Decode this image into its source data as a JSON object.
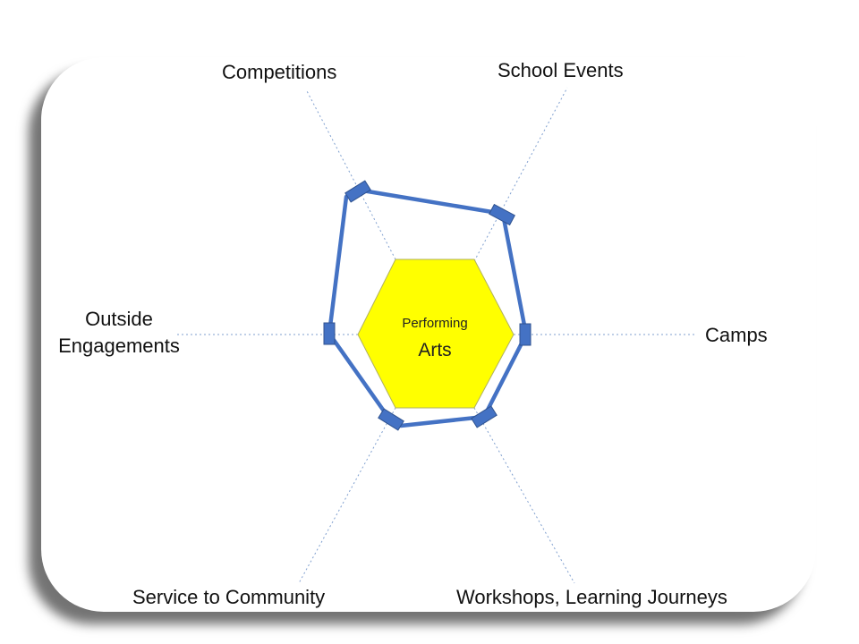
{
  "center": {
    "line1": "Performing",
    "line2": "Arts",
    "fill": "#ffff00"
  },
  "axes": [
    {
      "label": "Competitions"
    },
    {
      "label": "School Events"
    },
    {
      "label": "Camps"
    },
    {
      "label": "Workshops, Learning Journeys"
    },
    {
      "label": "Service to Community"
    },
    {
      "label": "Outside Engagements",
      "lines": [
        "Outside",
        "Engagements"
      ]
    }
  ],
  "colors": {
    "outline": "#4472c4",
    "marker": "#4472c4",
    "axis_line": "#7f9fcf"
  }
}
